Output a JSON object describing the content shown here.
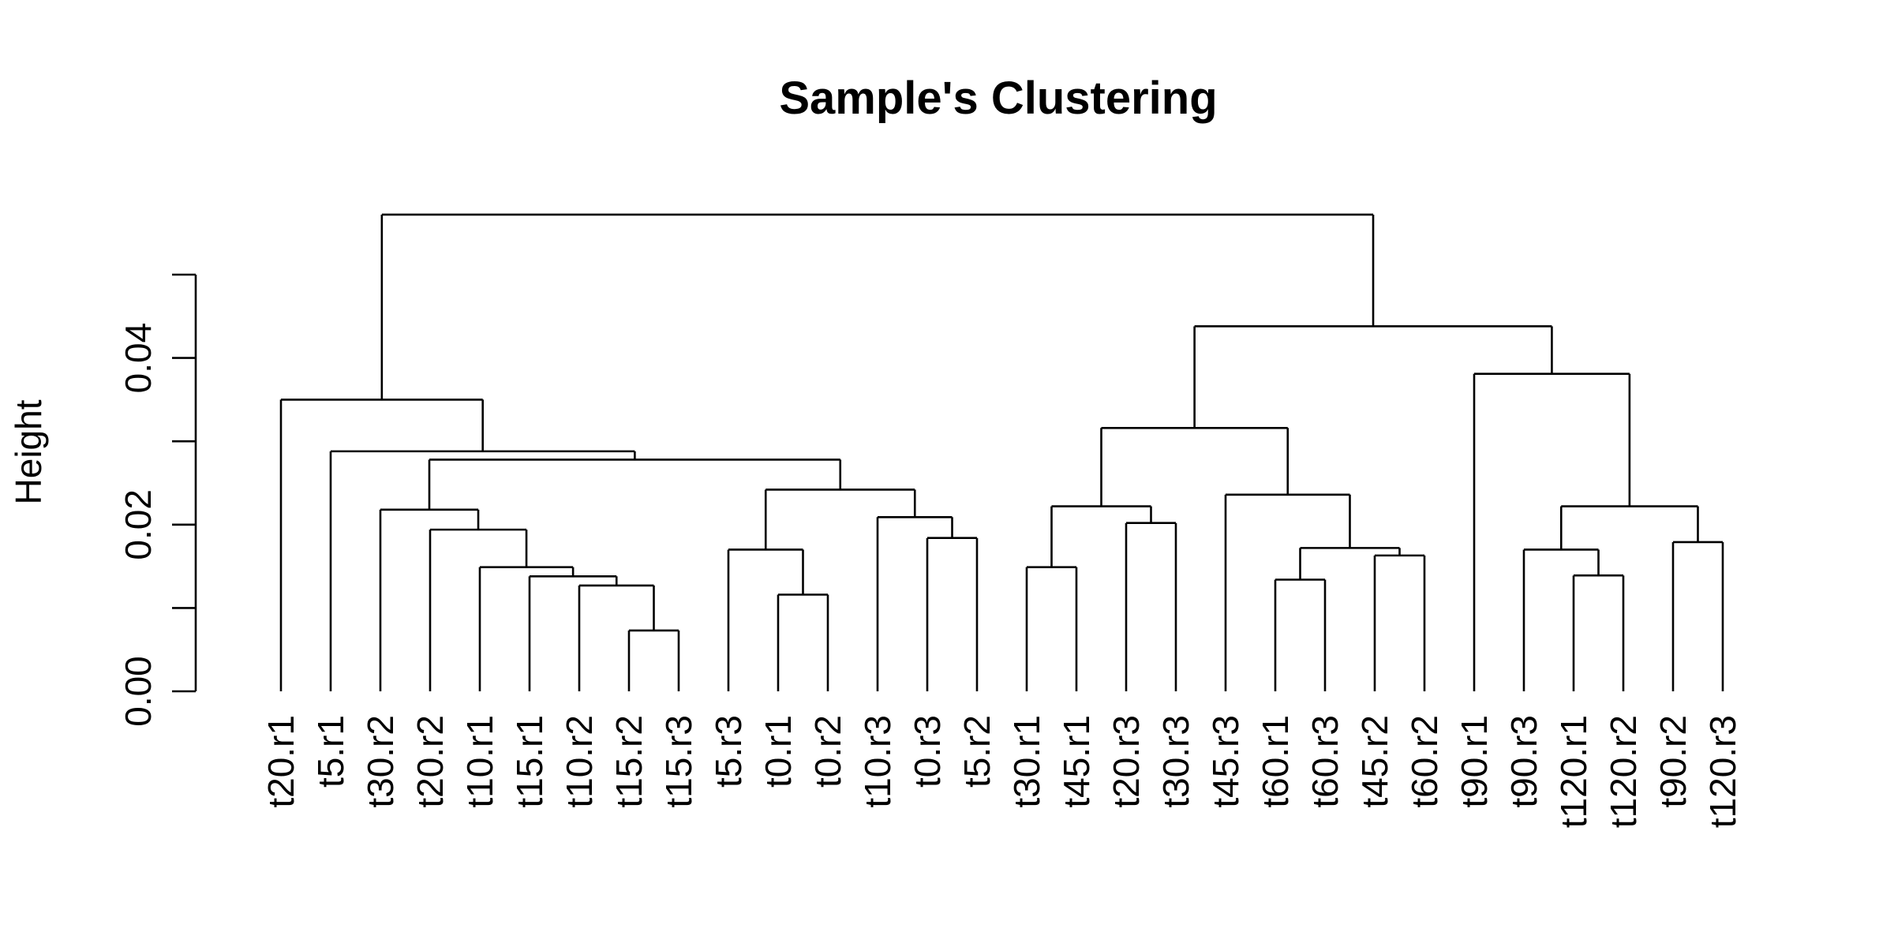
{
  "chart_data": {
    "type": "dendrogram",
    "title": "Sample's Clustering",
    "ylabel": "Height",
    "xlabel": "",
    "ylim": [
      0,
      0.05
    ],
    "yticks": [
      0.0,
      0.01,
      0.02,
      0.03,
      0.04,
      0.05
    ],
    "ytick_labels": [
      "0.00",
      "",
      "0.02",
      "",
      "0.04",
      ""
    ],
    "leaves": [
      "t20.r1",
      "t5.r1",
      "t30.r2",
      "t20.r2",
      "t10.r1",
      "t15.r1",
      "t10.r2",
      "t15.r2",
      "t15.r3",
      "t5.r3",
      "t0.r1",
      "t0.r2",
      "t10.r3",
      "t0.r3",
      "t5.r2",
      "t30.r1",
      "t45.r1",
      "t20.r3",
      "t30.r3",
      "t45.r3",
      "t60.r1",
      "t60.r3",
      "t45.r2",
      "t60.r2",
      "t90.r1",
      "t90.r3",
      "t120.r1",
      "t120.r2",
      "t90.r2",
      "t120.r3"
    ],
    "merges": [
      {
        "left": "t15.r2",
        "right": "t15.r3",
        "height": 0.0073
      },
      {
        "left": "t0.r1",
        "right": "t0.r2",
        "height": 0.0116
      },
      {
        "left": "t10.r2",
        "right": "m1",
        "height": 0.0127
      },
      {
        "left": "t60.r1",
        "right": "t60.r3",
        "height": 0.0134
      },
      {
        "left": "t120.r1",
        "right": "t120.r2",
        "height": 0.0139
      },
      {
        "left": "t15.r1",
        "right": "m3",
        "height": 0.0138
      },
      {
        "left": "t10.r1",
        "right": "m6",
        "height": 0.0149
      },
      {
        "left": "t30.r1",
        "right": "t45.r1",
        "height": 0.0149
      },
      {
        "left": "t45.r2",
        "right": "t60.r2",
        "height": 0.0163
      },
      {
        "left": "t5.r3",
        "right": "m2",
        "height": 0.017
      },
      {
        "left": "t90.r3",
        "right": "m5",
        "height": 0.017
      },
      {
        "left": "m4",
        "right": "m9",
        "height": 0.0172
      },
      {
        "left": "t90.r2",
        "right": "t120.r3",
        "height": 0.0179
      },
      {
        "left": "t0.r3",
        "right": "t5.r2",
        "height": 0.0184
      },
      {
        "left": "t20.r2",
        "right": "m7",
        "height": 0.0194
      },
      {
        "left": "t20.r3",
        "right": "t30.r3",
        "height": 0.0202
      },
      {
        "left": "t10.r3",
        "right": "m14",
        "height": 0.0209
      },
      {
        "left": "t30.r2",
        "right": "m15",
        "height": 0.0218
      },
      {
        "left": "m8",
        "right": "m16",
        "height": 0.0222
      },
      {
        "left": "m11",
        "right": "m13",
        "height": 0.0222
      },
      {
        "left": "t45.r3",
        "right": "m12",
        "height": 0.0236
      },
      {
        "left": "m10",
        "right": "m17",
        "height": 0.0242
      },
      {
        "left": "m18",
        "right": "m22",
        "height": 0.0278
      },
      {
        "left": "t5.r1",
        "right": "m23",
        "height": 0.0288
      },
      {
        "left": "m19",
        "right": "m21",
        "height": 0.0316
      },
      {
        "left": "t20.r1",
        "right": "m24",
        "height": 0.035
      },
      {
        "left": "t90.r1",
        "right": "m20",
        "height": 0.0381
      },
      {
        "left": "m25",
        "right": "m27",
        "height": 0.0438
      },
      {
        "left": "m26",
        "right": "m28",
        "height": 0.0572
      }
    ]
  }
}
